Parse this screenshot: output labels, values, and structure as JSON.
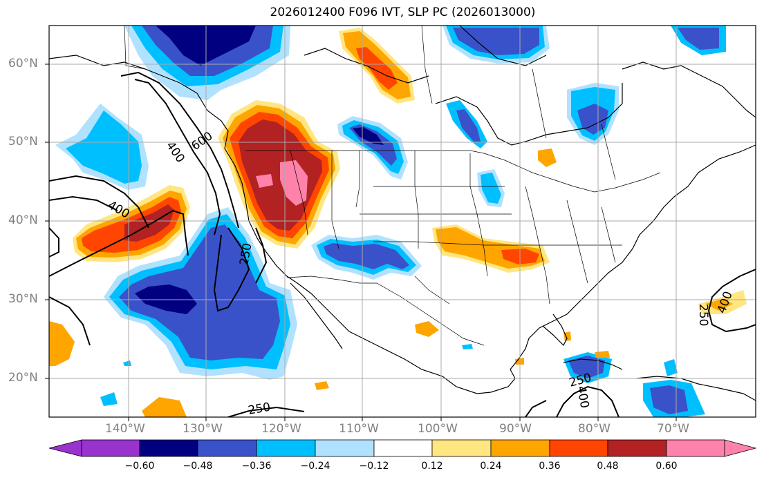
{
  "title": "2026012400 F096 IVT, SLP PC (2026013000)",
  "lat_labels": [
    "60°N",
    "50°N",
    "40°N",
    "30°N",
    "20°N"
  ],
  "lon_labels": [
    "140°W",
    "130°W",
    "120°W",
    "110°W",
    "100°W",
    "90°W",
    "80°W",
    "70°W"
  ],
  "contour_labels": [
    "600",
    "400",
    "400",
    "250",
    "250",
    "400",
    "250",
    "250",
    "400"
  ],
  "colorbar": {
    "levels": [
      "−0.60",
      "−0.48",
      "−0.36",
      "−0.24",
      "−0.12",
      "0.12",
      "0.24",
      "0.36",
      "0.48",
      "0.60"
    ],
    "colors": [
      "#9a32cd",
      "#000080",
      "#3a52c9",
      "#00bfff",
      "#b0e2ff",
      "#ffffff",
      "#ffe680",
      "#ffa500",
      "#ff4500",
      "#b22222",
      "#ff82ab"
    ]
  },
  "palette": {
    "neg_060": "#000080",
    "neg_048": "#3a52c9",
    "neg_036": "#00bfff",
    "neg_024": "#b0e2ff",
    "pos_024": "#ffe680",
    "pos_036": "#ffa500",
    "pos_048": "#ff4500",
    "pos_060": "#b22222",
    "pos_max": "#ff82ab",
    "grid": "#a9a9a9",
    "tick_label": "#808080"
  }
}
